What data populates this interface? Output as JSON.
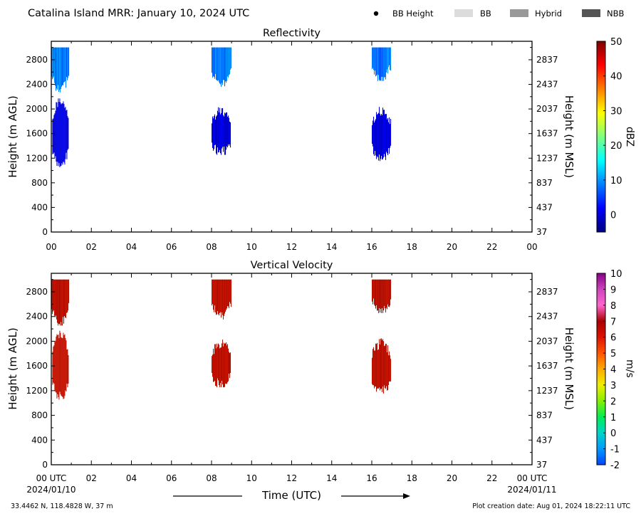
{
  "header": {
    "title": "Catalina Island MRR:  January 10, 2024 UTC",
    "legend": [
      {
        "label": "BB Height",
        "kind": "dot",
        "color": "#000000"
      },
      {
        "label": "BB",
        "kind": "box",
        "color": "#dcdcdc"
      },
      {
        "label": "Hybrid",
        "kind": "box",
        "color": "#999999"
      },
      {
        "label": "NBB",
        "kind": "box",
        "color": "#555555"
      }
    ]
  },
  "footer": {
    "location": "33.4462 N, 118.4828 W, 37 m",
    "created": "Plot creation date: Aug 01, 2024 18:22:11 UTC",
    "xlabel": "Time (UTC)",
    "start_date": "2024/01/10",
    "end_date": "2024/01/11"
  },
  "chart_data": [
    {
      "type": "heatmap",
      "title": "Reflectivity",
      "ylabel": "Height (m AGL)",
      "ylabel_right": "Height (m MSL)",
      "xlim": [
        0,
        24
      ],
      "ylim": [
        0,
        3100
      ],
      "x_ticks": [
        "00",
        "02",
        "04",
        "06",
        "08",
        "10",
        "12",
        "14",
        "16",
        "18",
        "20",
        "22",
        "00"
      ],
      "y_ticks": [
        0,
        400,
        800,
        1200,
        1600,
        2000,
        2400,
        2800
      ],
      "y_ticks_right": [
        "37",
        "437",
        "837",
        "1237",
        "1637",
        "2037",
        "2437",
        "2837"
      ],
      "colorbar": {
        "label": "dBZ",
        "range": [
          -5,
          50
        ],
        "ticks": [
          0,
          10,
          20,
          30,
          40,
          50
        ],
        "colors": [
          "#00007f",
          "#0000ff",
          "#007fff",
          "#00ffff",
          "#7fff7f",
          "#ffff00",
          "#ff7f00",
          "#ff0000",
          "#7f0000"
        ]
      },
      "echoes": [
        {
          "x0": 0.0,
          "x1": 0.9,
          "y0": 2300,
          "y1": 3000,
          "value": 5
        },
        {
          "x0": 0.05,
          "x1": 0.85,
          "y0": 1100,
          "y1": 2150,
          "value": -1
        },
        {
          "x0": 8.0,
          "x1": 9.0,
          "y0": 2400,
          "y1": 3000,
          "value": 5
        },
        {
          "x0": 8.0,
          "x1": 8.95,
          "y0": 1300,
          "y1": 2000,
          "value": -1
        },
        {
          "x0": 16.0,
          "x1": 16.95,
          "y0": 2500,
          "y1": 3000,
          "value": 5
        },
        {
          "x0": 16.0,
          "x1": 16.95,
          "y0": 1200,
          "y1": 2000,
          "value": -1
        }
      ]
    },
    {
      "type": "heatmap",
      "title": "Vertical Velocity",
      "ylabel": "Height (m AGL)",
      "ylabel_right": "Height (m MSL)",
      "xlim": [
        0,
        24
      ],
      "ylim": [
        0,
        3100
      ],
      "x_ticks": [
        "00 UTC",
        "02",
        "04",
        "06",
        "08",
        "10",
        "12",
        "14",
        "16",
        "18",
        "20",
        "22",
        "00 UTC"
      ],
      "y_ticks": [
        0,
        400,
        800,
        1200,
        1600,
        2000,
        2400,
        2800
      ],
      "y_ticks_right": [
        "37",
        "437",
        "837",
        "1237",
        "1637",
        "2037",
        "2437",
        "2837"
      ],
      "colorbar": {
        "label": "m/s",
        "range": [
          -2,
          10
        ],
        "ticks": [
          -2,
          -1,
          0,
          1,
          2,
          3,
          4,
          5,
          6,
          7,
          8,
          9,
          10
        ],
        "colors": [
          "#0044ff",
          "#0099ff",
          "#00d4c8",
          "#00ee55",
          "#88ee00",
          "#eeee00",
          "#ffaa00",
          "#ff5500",
          "#dd1100",
          "#aa0000",
          "#ff66cc",
          "#cc44bb",
          "#880088"
        ]
      },
      "echoes": [
        {
          "x0": 0.0,
          "x1": 0.9,
          "y0": 2300,
          "y1": 3000,
          "value": 6
        },
        {
          "x0": 0.05,
          "x1": 0.85,
          "y0": 1100,
          "y1": 2150,
          "value": 6
        },
        {
          "x0": 8.0,
          "x1": 9.0,
          "y0": 2400,
          "y1": 3000,
          "value": 6
        },
        {
          "x0": 8.0,
          "x1": 8.95,
          "y0": 1300,
          "y1": 2000,
          "value": 6
        },
        {
          "x0": 16.0,
          "x1": 16.95,
          "y0": 2500,
          "y1": 3000,
          "value": 6
        },
        {
          "x0": 16.0,
          "x1": 16.95,
          "y0": 1200,
          "y1": 2000,
          "value": 6
        }
      ]
    }
  ]
}
